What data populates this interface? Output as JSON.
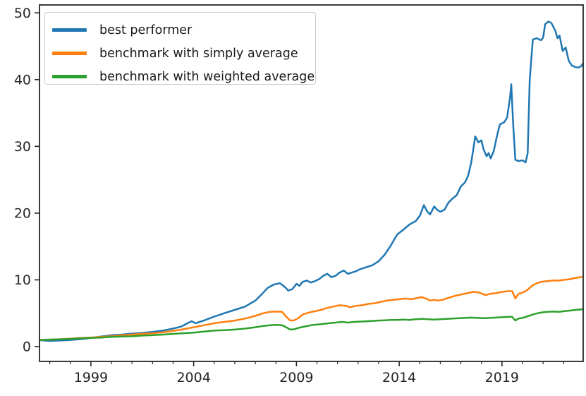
{
  "chart_data": {
    "type": "line",
    "title": "",
    "xlabel": "",
    "ylabel": "",
    "grid": false,
    "legend_position": "upper left",
    "xlim": [
      1996.5,
      2022.95
    ],
    "ylim": [
      -2.22,
      51.19
    ],
    "x_ticks_major": [
      1999,
      2004,
      2009,
      2014,
      2019
    ],
    "x_tick_labels": [
      "1999",
      "2004",
      "2009",
      "2014",
      "2019"
    ],
    "x_ticks_minor": [
      1997,
      1998,
      2000,
      2001,
      2002,
      2003,
      2005,
      2006,
      2007,
      2008,
      2010,
      2011,
      2012,
      2013,
      2015,
      2016,
      2017,
      2018,
      2020,
      2021,
      2022
    ],
    "y_ticks": [
      0,
      10,
      20,
      30,
      40,
      50
    ],
    "y_tick_labels": [
      "0",
      "10",
      "20",
      "30",
      "40",
      "50"
    ],
    "axis_color": "#262626",
    "series": [
      {
        "name": "best performer",
        "color": "#1f77b4",
        "x": [
          1996.55,
          1997.0,
          1997.4,
          1997.8,
          1998.2,
          1998.6,
          1999.0,
          1999.5,
          2000.0,
          2000.5,
          2001.0,
          2001.5,
          2002.0,
          2002.5,
          2003.0,
          2003.4,
          2003.7,
          2003.9,
          2004.1,
          2004.5,
          2005.0,
          2005.5,
          2006.0,
          2006.5,
          2007.0,
          2007.3,
          2007.6,
          2007.9,
          2008.2,
          2008.45,
          2008.6,
          2008.8,
          2009.0,
          2009.15,
          2009.3,
          2009.5,
          2009.7,
          2009.9,
          2010.1,
          2010.3,
          2010.5,
          2010.7,
          2010.9,
          2011.1,
          2011.3,
          2011.5,
          2011.7,
          2011.9,
          2012.1,
          2012.4,
          2012.7,
          2013.0,
          2013.3,
          2013.6,
          2013.9,
          2014.2,
          2014.5,
          2014.8,
          2015.0,
          2015.2,
          2015.35,
          2015.5,
          2015.7,
          2015.85,
          2016.0,
          2016.2,
          2016.4,
          2016.6,
          2016.8,
          2017.0,
          2017.2,
          2017.35,
          2017.5,
          2017.7,
          2017.85,
          2018.0,
          2018.1,
          2018.25,
          2018.35,
          2018.45,
          2018.6,
          2018.75,
          2018.9,
          2019.1,
          2019.25,
          2019.4,
          2019.45,
          2019.55,
          2019.65,
          2019.8,
          2020.0,
          2020.15,
          2020.25,
          2020.35,
          2020.5,
          2020.7,
          2020.9,
          2021.0,
          2021.1,
          2021.25,
          2021.4,
          2021.5,
          2021.6,
          2021.7,
          2021.8,
          2021.95,
          2022.1,
          2022.25,
          2022.4,
          2022.55,
          2022.7,
          2022.85,
          2022.93
        ],
        "values": [
          0.95,
          0.85,
          0.9,
          0.95,
          1.05,
          1.15,
          1.3,
          1.5,
          1.7,
          1.8,
          1.95,
          2.05,
          2.2,
          2.4,
          2.7,
          3.0,
          3.5,
          3.8,
          3.5,
          3.9,
          4.5,
          5.0,
          5.5,
          6.0,
          6.9,
          7.8,
          8.8,
          9.3,
          9.5,
          8.9,
          8.4,
          8.6,
          9.4,
          9.1,
          9.7,
          9.9,
          9.6,
          9.8,
          10.1,
          10.6,
          10.9,
          10.4,
          10.6,
          11.1,
          11.4,
          10.9,
          11.1,
          11.3,
          11.6,
          11.9,
          12.2,
          12.8,
          13.8,
          15.2,
          16.8,
          17.5,
          18.3,
          18.8,
          19.6,
          21.2,
          20.3,
          19.8,
          21.0,
          20.5,
          20.2,
          20.5,
          21.6,
          22.2,
          22.7,
          24.0,
          24.6,
          25.6,
          27.5,
          31.5,
          30.6,
          30.9,
          29.6,
          28.5,
          29.0,
          28.2,
          29.3,
          31.5,
          33.3,
          33.6,
          34.3,
          37.5,
          39.3,
          33.0,
          28.0,
          27.8,
          27.9,
          27.6,
          29.0,
          40.0,
          46.0,
          46.2,
          45.9,
          46.3,
          48.3,
          48.7,
          48.5,
          47.9,
          47.3,
          46.2,
          46.6,
          44.3,
          44.8,
          42.8,
          42.1,
          41.9,
          41.8,
          42.0,
          42.4
        ]
      },
      {
        "name": "benchmark with simply average",
        "color": "#ff7f0e",
        "x": [
          1996.55,
          1997.0,
          1997.5,
          1998.0,
          1998.5,
          1999.0,
          1999.5,
          2000.0,
          2000.5,
          2001.0,
          2001.5,
          2002.0,
          2002.5,
          2003.0,
          2003.5,
          2004.0,
          2004.5,
          2005.0,
          2005.5,
          2006.0,
          2006.5,
          2007.0,
          2007.4,
          2007.7,
          2008.0,
          2008.3,
          2008.5,
          2008.7,
          2008.9,
          2009.1,
          2009.3,
          2009.6,
          2009.9,
          2010.2,
          2010.5,
          2010.8,
          2011.1,
          2011.4,
          2011.6,
          2011.9,
          2012.2,
          2012.5,
          2012.8,
          2013.1,
          2013.4,
          2013.7,
          2014.0,
          2014.3,
          2014.6,
          2014.9,
          2015.1,
          2015.3,
          2015.5,
          2015.7,
          2015.9,
          2016.1,
          2016.4,
          2016.7,
          2017.0,
          2017.3,
          2017.6,
          2017.9,
          2018.2,
          2018.4,
          2018.7,
          2019.0,
          2019.3,
          2019.5,
          2019.65,
          2019.8,
          2020.0,
          2020.2,
          2020.35,
          2020.5,
          2020.7,
          2020.9,
          2021.2,
          2021.5,
          2021.8,
          2022.0,
          2022.3,
          2022.6,
          2022.93
        ],
        "values": [
          1.0,
          1.05,
          1.1,
          1.2,
          1.3,
          1.35,
          1.45,
          1.55,
          1.7,
          1.8,
          1.9,
          2.0,
          2.15,
          2.35,
          2.6,
          2.9,
          3.2,
          3.5,
          3.7,
          3.9,
          4.2,
          4.6,
          5.0,
          5.2,
          5.25,
          5.2,
          4.5,
          3.9,
          3.95,
          4.3,
          4.8,
          5.1,
          5.3,
          5.5,
          5.8,
          6.0,
          6.2,
          6.1,
          5.9,
          6.1,
          6.2,
          6.4,
          6.5,
          6.7,
          6.9,
          7.0,
          7.1,
          7.2,
          7.1,
          7.3,
          7.4,
          7.2,
          6.9,
          7.0,
          6.9,
          7.0,
          7.3,
          7.6,
          7.8,
          8.0,
          8.2,
          8.1,
          7.7,
          7.9,
          8.0,
          8.2,
          8.3,
          8.3,
          7.2,
          7.9,
          8.1,
          8.4,
          8.8,
          9.2,
          9.5,
          9.7,
          9.8,
          9.9,
          9.9,
          10.0,
          10.1,
          10.3,
          10.45
        ]
      },
      {
        "name": "benchmark with weighted average",
        "color": "#2ca02c",
        "x": [
          1996.55,
          1997.0,
          1997.5,
          1998.0,
          1998.5,
          1999.0,
          1999.5,
          2000.0,
          2000.5,
          2001.0,
          2001.5,
          2002.0,
          2002.5,
          2003.0,
          2003.5,
          2004.0,
          2004.5,
          2005.0,
          2005.5,
          2006.0,
          2006.5,
          2007.0,
          2007.4,
          2007.7,
          2008.0,
          2008.3,
          2008.5,
          2008.7,
          2008.9,
          2009.1,
          2009.4,
          2009.7,
          2010.0,
          2010.3,
          2010.6,
          2010.9,
          2011.2,
          2011.5,
          2011.8,
          2012.1,
          2012.4,
          2012.7,
          2013.0,
          2013.3,
          2013.6,
          2013.9,
          2014.2,
          2014.5,
          2014.8,
          2015.1,
          2015.4,
          2015.7,
          2016.0,
          2016.3,
          2016.6,
          2016.9,
          2017.2,
          2017.5,
          2017.8,
          2018.1,
          2018.4,
          2018.7,
          2019.0,
          2019.3,
          2019.5,
          2019.65,
          2019.8,
          2020.0,
          2020.2,
          2020.4,
          2020.6,
          2020.9,
          2021.2,
          2021.5,
          2021.8,
          2022.0,
          2022.3,
          2022.6,
          2022.93
        ],
        "values": [
          1.0,
          1.05,
          1.1,
          1.15,
          1.25,
          1.3,
          1.35,
          1.45,
          1.5,
          1.55,
          1.65,
          1.7,
          1.8,
          1.9,
          2.0,
          2.1,
          2.25,
          2.4,
          2.45,
          2.55,
          2.7,
          2.9,
          3.1,
          3.2,
          3.25,
          3.2,
          2.9,
          2.55,
          2.6,
          2.8,
          3.0,
          3.2,
          3.3,
          3.4,
          3.5,
          3.6,
          3.7,
          3.6,
          3.7,
          3.75,
          3.8,
          3.85,
          3.9,
          3.95,
          4.0,
          4.0,
          4.05,
          4.0,
          4.1,
          4.15,
          4.1,
          4.05,
          4.1,
          4.15,
          4.2,
          4.25,
          4.3,
          4.35,
          4.3,
          4.25,
          4.3,
          4.35,
          4.4,
          4.45,
          4.45,
          3.9,
          4.2,
          4.3,
          4.5,
          4.7,
          4.9,
          5.1,
          5.2,
          5.25,
          5.2,
          5.3,
          5.4,
          5.5,
          5.6
        ]
      }
    ]
  }
}
